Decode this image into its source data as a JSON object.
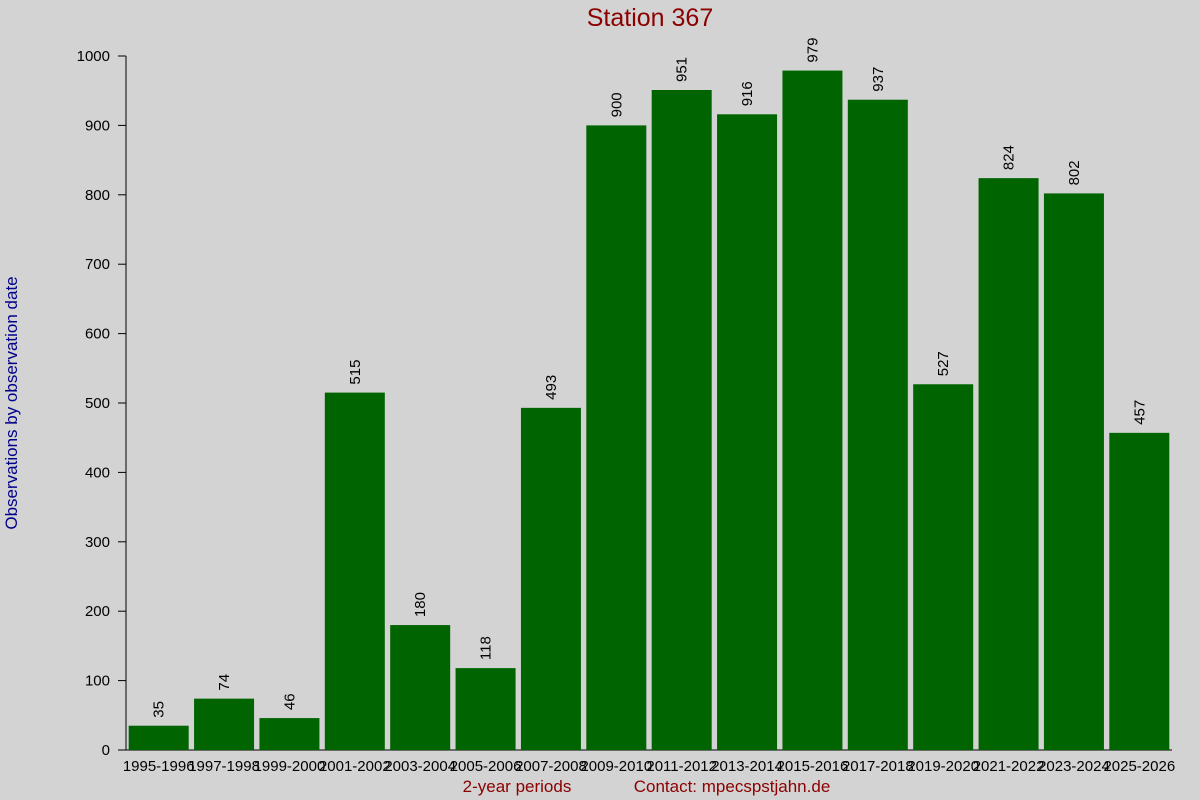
{
  "chart_data": {
    "type": "bar",
    "title": "Station 367",
    "y_label": "Observations by observation date",
    "x_label": "2-year periods",
    "note": "Contact: mpecspstjahn.de",
    "categories": [
      "1995-1996",
      "1997-1998",
      "1999-2000",
      "2001-2002",
      "2003-2004",
      "2005-2006",
      "2007-2008",
      "2009-2010",
      "2011-2012",
      "2013-2014",
      "2015-2016",
      "2017-2018",
      "2019-2020",
      "2021-2022",
      "2023-2024",
      "2025-2026"
    ],
    "values": [
      35,
      74,
      46,
      515,
      180,
      118,
      493,
      900,
      951,
      916,
      979,
      937,
      527,
      824,
      802,
      457
    ],
    "color": "#006400",
    "ylim": [
      0,
      1000
    ],
    "yticks": [
      0,
      100,
      200,
      300,
      400,
      500,
      600,
      700,
      800,
      900,
      1000
    ]
  }
}
